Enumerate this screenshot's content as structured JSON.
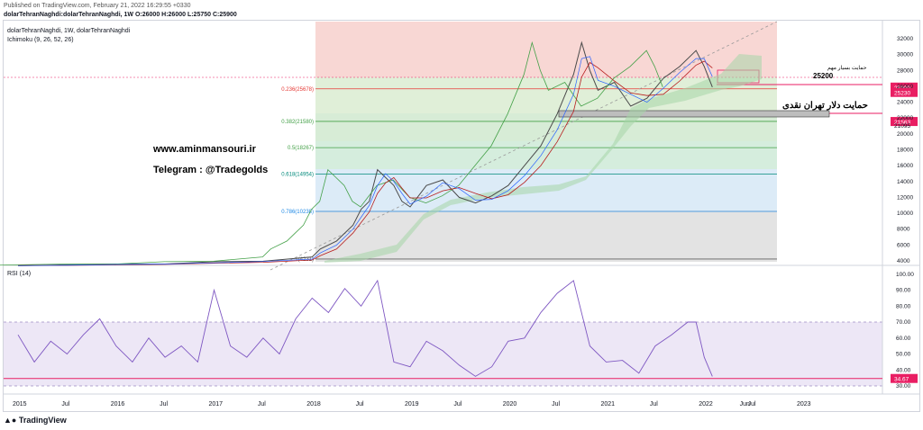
{
  "header": {
    "published": "Published on TradingView.com, February 21, 2022 16:29:55 +0330",
    "symbol_line": "dolarTehranNaghdi:dolarTehranNaghdi, 1W  O:26000 H:26000 L:25750 C:25900"
  },
  "legend": {
    "title": "dolarTehranNaghdi, 1W, dolarTehranNaghdi",
    "ichimoku": "Ichimoku (9, 26, 52, 26)",
    "rsi": "RSI (14)"
  },
  "annotations": {
    "website": "www.aminmansouri.ir",
    "telegram": "Telegram : @Tradegolds",
    "support_important": "حمایت بسیار مهم",
    "support_value": "25200",
    "support_cash": "حمایت دلار تهران نقدی"
  },
  "footer": {
    "brand": "TradingView"
  },
  "colors": {
    "price": "#4a4a4a",
    "chikou": "#43a047",
    "tenkan": "#2962ff",
    "kijun": "#b71c1c",
    "cloud": "#a5d6a7",
    "rsi": "#7e57c2",
    "marker": "#e91e63"
  },
  "chart_data": [
    {
      "type": "line",
      "title": "dolarTehranNaghdi, 1W",
      "x": [
        "2015",
        "Jul",
        "2016",
        "Jul",
        "2017",
        "Jul",
        "2018",
        "Jul",
        "2019",
        "Jul",
        "2020",
        "Jul",
        "2021",
        "Jul",
        "2022",
        "Jun",
        "2023",
        "Jul"
      ],
      "ylim": [
        3000,
        33000
      ],
      "y_ticks": [
        4000,
        6000,
        8000,
        10000,
        12000,
        14000,
        16000,
        18000,
        20000,
        22000,
        24000,
        26000,
        28000,
        30000,
        32000
      ],
      "fibonacci": [
        {
          "label": "0.236(25678)",
          "value": 25678
        },
        {
          "label": "0.382(21580)",
          "value": 21580
        },
        {
          "label": "0.5(18267)",
          "value": 18267
        },
        {
          "label": "0.618(14954)",
          "value": 14954
        },
        {
          "label": "0.786(10238)",
          "value": 10238
        },
        {
          "label": "1(4231)",
          "value": 4231
        }
      ],
      "price_labels": [
        {
          "text": "25900",
          "value": 25900
        },
        {
          "text": "25230",
          "value": 25230
        },
        {
          "text": "21563",
          "value": 21563
        },
        {
          "text": "21095",
          "value": 21095
        }
      ],
      "series": [
        {
          "name": "dolarTehranNaghdi",
          "points": [
            [
              "2015-01",
              3400
            ],
            [
              "2015-07",
              3500
            ],
            [
              "2016-01",
              3600
            ],
            [
              "2016-07",
              3600
            ],
            [
              "2017-01",
              3900
            ],
            [
              "2017-07",
              3950
            ],
            [
              "2018-01",
              4500
            ],
            [
              "2018-02",
              5500
            ],
            [
              "2018-04",
              6500
            ],
            [
              "2018-05",
              7500
            ],
            [
              "2018-06",
              8500
            ],
            [
              "2018-07",
              10500
            ],
            [
              "2018-08",
              11500
            ],
            [
              "2018-09",
              15500
            ],
            [
              "2018-10",
              14500
            ],
            [
              "2018-11",
              13500
            ],
            [
              "2018-12",
              11500
            ],
            [
              "2019-01",
              10800
            ],
            [
              "2019-03",
              13500
            ],
            [
              "2019-05",
              14200
            ],
            [
              "2019-07",
              12000
            ],
            [
              "2019-09",
              11300
            ],
            [
              "2019-11",
              12200
            ],
            [
              "2020-01",
              13500
            ],
            [
              "2020-03",
              16000
            ],
            [
              "2020-05",
              18500
            ],
            [
              "2020-07",
              22500
            ],
            [
              "2020-09",
              27500
            ],
            [
              "2020-10",
              31500
            ],
            [
              "2020-11",
              28000
            ],
            [
              "2020-12",
              25500
            ],
            [
              "2021-02",
              26500
            ],
            [
              "2021-04",
              23500
            ],
            [
              "2021-06",
              24500
            ],
            [
              "2021-08",
              27000
            ],
            [
              "2021-10",
              28500
            ],
            [
              "2021-12",
              30500
            ],
            [
              "2022-01",
              28500
            ],
            [
              "2022-02",
              25900
            ]
          ]
        }
      ]
    },
    {
      "type": "line",
      "title": "RSI (14)",
      "ylim": [
        25,
        100
      ],
      "y_ticks": [
        30,
        40,
        50,
        60,
        70,
        80,
        90,
        100
      ],
      "levels": [
        30,
        70
      ],
      "current": "34.67",
      "current_value": 34.67,
      "series": [
        {
          "name": "RSI (14)",
          "points": [
            [
              "2015-01",
              62
            ],
            [
              "2015-03",
              45
            ],
            [
              "2015-05",
              58
            ],
            [
              "2015-07",
              50
            ],
            [
              "2015-09",
              62
            ],
            [
              "2015-11",
              72
            ],
            [
              "2016-01",
              55
            ],
            [
              "2016-03",
              45
            ],
            [
              "2016-05",
              60
            ],
            [
              "2016-07",
              48
            ],
            [
              "2016-09",
              55
            ],
            [
              "2016-11",
              45
            ],
            [
              "2017-01",
              90
            ],
            [
              "2017-03",
              55
            ],
            [
              "2017-05",
              48
            ],
            [
              "2017-07",
              60
            ],
            [
              "2017-09",
              50
            ],
            [
              "2017-11",
              72
            ],
            [
              "2018-01",
              85
            ],
            [
              "2018-03",
              76
            ],
            [
              "2018-05",
              91
            ],
            [
              "2018-07",
              80
            ],
            [
              "2018-09",
              96
            ],
            [
              "2018-11",
              45
            ],
            [
              "2019-01",
              42
            ],
            [
              "2019-03",
              58
            ],
            [
              "2019-05",
              52
            ],
            [
              "2019-07",
              43
            ],
            [
              "2019-09",
              36
            ],
            [
              "2019-11",
              42
            ],
            [
              "2020-01",
              58
            ],
            [
              "2020-03",
              60
            ],
            [
              "2020-05",
              76
            ],
            [
              "2020-07",
              88
            ],
            [
              "2020-09",
              96
            ],
            [
              "2020-11",
              55
            ],
            [
              "2021-01",
              45
            ],
            [
              "2021-03",
              46
            ],
            [
              "2021-05",
              38
            ],
            [
              "2021-07",
              55
            ],
            [
              "2021-09",
              62
            ],
            [
              "2021-11",
              70
            ],
            [
              "2021-12",
              70
            ],
            [
              "2022-01",
              48
            ],
            [
              "2022-02",
              36
            ]
          ]
        }
      ]
    }
  ]
}
